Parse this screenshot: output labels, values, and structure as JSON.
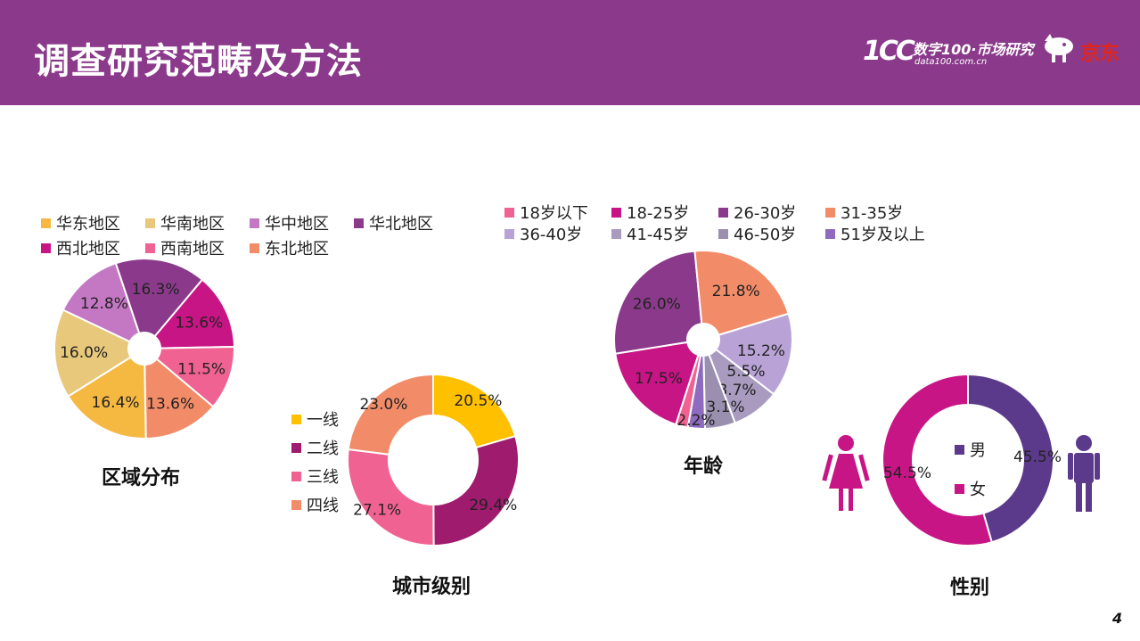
{
  "header": {
    "title": "调查研究范畴及方法",
    "brand_logo": "1CC",
    "brand_name": "数字100·市场研究",
    "brand_url": "data100.com.cn",
    "partner_name": "京东"
  },
  "page_number": "4",
  "colors": {
    "header_bg": "#8b3a8b",
    "partner_red": "#e1251b"
  },
  "chart_data": [
    {
      "id": "region",
      "type": "pie",
      "title": "区域分布",
      "categories": [
        "华东地区",
        "华南地区",
        "华中地区",
        "华北地区",
        "西北地区",
        "西南地区",
        "东北地区"
      ],
      "values": [
        16.4,
        16.0,
        12.8,
        16.3,
        13.6,
        11.5,
        13.6
      ],
      "labels": [
        "16.4%",
        "16.0%",
        "12.8%",
        "16.3%",
        "13.6%",
        "11.5%",
        "13.6%"
      ],
      "colors": [
        "#f5b942",
        "#e8c87a",
        "#c478c4",
        "#8b3a8b",
        "#c71585",
        "#f06292",
        "#f28c68"
      ],
      "legend_order": [
        "华东地区",
        "华南地区",
        "华中地区",
        "华北地区",
        "西北地区",
        "西南地区",
        "东北地区"
      ],
      "legend": "top"
    },
    {
      "id": "city",
      "type": "pie",
      "title": "城市级别",
      "categories": [
        "一线",
        "二线",
        "三线",
        "四线"
      ],
      "values": [
        20.5,
        29.4,
        27.1,
        23.0
      ],
      "labels": [
        "20.5%",
        "29.4%",
        "27.1%",
        "23.0%"
      ],
      "colors": [
        "#ffc000",
        "#9e1b6e",
        "#f06292",
        "#f28c68"
      ],
      "legend": "left"
    },
    {
      "id": "age",
      "type": "pie",
      "title": "年龄",
      "categories": [
        "18岁以下",
        "18-25岁",
        "26-30岁",
        "31-35岁",
        "36-40岁",
        "41-45岁",
        "46-50岁",
        "51岁及以上"
      ],
      "values": [
        2.2,
        17.5,
        26.0,
        21.8,
        15.2,
        8.7,
        5.5,
        3.1
      ],
      "labels": [
        "2.2%",
        "17.5%",
        "26.0%",
        "21.8%",
        "15.2%",
        "8.7%",
        "5.5%",
        "3.1%"
      ],
      "colors": [
        "#f06292",
        "#c71585",
        "#8b3a8b",
        "#f28c68",
        "#b9a3d6",
        "#a89bbf",
        "#9b8fb0",
        "#8e6bbf"
      ],
      "legend": "top"
    },
    {
      "id": "gender",
      "type": "pie",
      "title": "性别",
      "categories": [
        "男",
        "女"
      ],
      "values": [
        45.5,
        54.5
      ],
      "labels": [
        "45.5%",
        "54.5%"
      ],
      "colors": [
        "#5b3a8b",
        "#c71585"
      ],
      "legend": "center"
    }
  ]
}
